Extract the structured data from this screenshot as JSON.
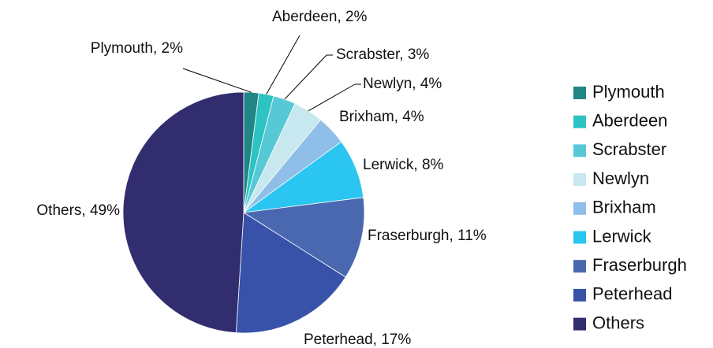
{
  "chart_data": {
    "type": "pie",
    "categories": [
      "Plymouth",
      "Aberdeen",
      "Scrabster",
      "Newlyn",
      "Brixham",
      "Lerwick",
      "Fraserburgh",
      "Peterhead",
      "Others"
    ],
    "values": [
      2,
      2,
      3,
      4,
      4,
      8,
      11,
      17,
      49
    ],
    "value_labels": [
      "Plymouth, 2%",
      "Aberdeen, 2%",
      "Scrabster, 3%",
      "Newlyn, 4%",
      "Brixham, 4%",
      "Lerwick, 8%",
      "Fraserburgh, 11%",
      "Peterhead, 17%",
      "Others, 49%"
    ],
    "colors": [
      "#1f8585",
      "#2ec3c3",
      "#57c8d6",
      "#c6e8ee",
      "#8fbfe8",
      "#2ac5f1",
      "#4a68b0",
      "#3752a8",
      "#312d6f"
    ],
    "legend": "right"
  }
}
